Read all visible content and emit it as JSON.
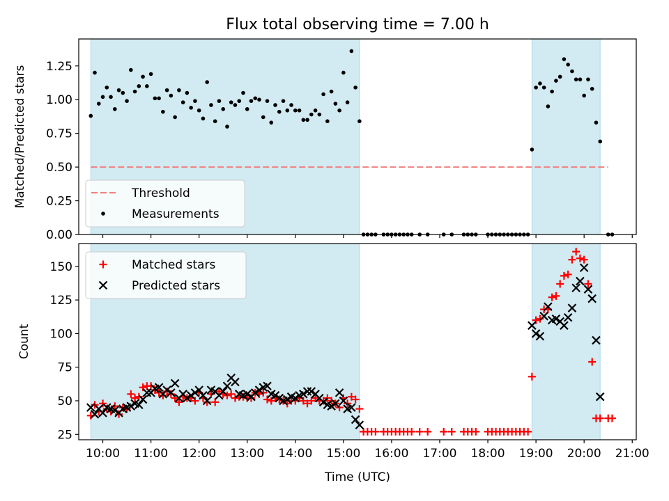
{
  "figure": {
    "title": "Flux total observing time = 7.00 h",
    "xlabel": "Time (UTC)",
    "x_ticks": [
      "10:00",
      "11:00",
      "12:00",
      "13:00",
      "14:00",
      "15:00",
      "16:00",
      "17:00",
      "18:00",
      "19:00",
      "20:00",
      "21:00"
    ]
  },
  "colors": {
    "span": "#add8e6",
    "threshold": "#f08080",
    "matched": "#ff0000",
    "predicted": "#000000",
    "measurements": "#000000"
  },
  "chart_data": [
    {
      "type": "scatter",
      "title": "Flux total observing time = 7.00 h",
      "xlabel": "",
      "ylabel": "Matched/Predicted stars",
      "xlim": [
        "09:30",
        "21:05"
      ],
      "ylim": [
        0,
        1.45
      ],
      "y_ticks": [
        "0.00",
        "0.25",
        "0.50",
        "0.75",
        "1.00",
        "1.25"
      ],
      "legend": {
        "placement": "lower-left",
        "entries": [
          "Threshold",
          "Measurements"
        ]
      },
      "shaded_intervals": [
        [
          "09:45",
          "15:20"
        ],
        [
          "18:55",
          "20:20"
        ]
      ],
      "threshold": {
        "name": "Threshold",
        "y": 0.5,
        "x_start": "09:45",
        "x_end": "20:30"
      },
      "series": [
        {
          "name": "Measurements",
          "marker": "dot",
          "x": [
            "09:45",
            "09:50",
            "09:55",
            "10:00",
            "10:05",
            "10:10",
            "10:15",
            "10:20",
            "10:25",
            "10:30",
            "10:35",
            "10:40",
            "10:45",
            "10:50",
            "10:55",
            "11:00",
            "11:05",
            "11:10",
            "11:15",
            "11:20",
            "11:25",
            "11:30",
            "11:35",
            "11:40",
            "11:45",
            "11:50",
            "11:55",
            "12:00",
            "12:05",
            "12:10",
            "12:15",
            "12:20",
            "12:25",
            "12:30",
            "12:35",
            "12:40",
            "12:45",
            "12:50",
            "12:55",
            "13:00",
            "13:05",
            "13:10",
            "13:15",
            "13:20",
            "13:25",
            "13:30",
            "13:35",
            "13:40",
            "13:45",
            "13:50",
            "13:55",
            "14:00",
            "14:05",
            "14:10",
            "14:15",
            "14:20",
            "14:25",
            "14:30",
            "14:35",
            "14:40",
            "14:45",
            "14:50",
            "14:55",
            "15:00",
            "15:05",
            "15:10",
            "15:15",
            "15:20",
            "15:25",
            "15:30",
            "15:35",
            "15:40",
            "15:50",
            "15:55",
            "16:00",
            "16:05",
            "16:10",
            "16:15",
            "16:20",
            "16:25",
            "16:35",
            "16:45",
            "17:05",
            "17:15",
            "17:30",
            "17:35",
            "17:40",
            "17:45",
            "18:00",
            "18:05",
            "18:10",
            "18:15",
            "18:20",
            "18:25",
            "18:30",
            "18:35",
            "18:40",
            "18:45",
            "18:50",
            "18:55",
            "19:00",
            "19:05",
            "19:10",
            "19:15",
            "19:20",
            "19:25",
            "19:30",
            "19:35",
            "19:40",
            "19:45",
            "19:50",
            "19:55",
            "20:00",
            "20:05",
            "20:10",
            "20:15",
            "20:20",
            "20:30",
            "20:35"
          ],
          "y": [
            0.88,
            1.2,
            0.97,
            1.02,
            1.09,
            1.02,
            0.93,
            1.07,
            1.05,
            0.99,
            1.22,
            1.06,
            1.1,
            1.17,
            1.1,
            1.19,
            1.01,
            1.01,
            0.91,
            1.07,
            1.03,
            0.87,
            1.07,
            0.98,
            1.05,
            0.94,
            0.99,
            0.92,
            0.86,
            1.13,
            0.96,
            0.84,
            0.99,
            0.93,
            0.8,
            0.98,
            0.96,
            0.99,
            1.05,
            0.93,
            0.99,
            1.01,
            1.0,
            0.87,
            0.99,
            0.83,
            0.96,
            0.91,
            0.99,
            0.92,
            0.96,
            0.92,
            0.92,
            0.85,
            0.85,
            0.89,
            0.92,
            0.89,
            1.04,
            0.84,
            1.06,
            0.97,
            0.92,
            1.2,
            0.98,
            1.36,
            1.09,
            0.84,
            0.0,
            0.0,
            0.0,
            0.0,
            0.0,
            0.0,
            0.0,
            0.0,
            0.0,
            0.0,
            0.0,
            0.0,
            0.0,
            0.0,
            0.0,
            0.0,
            0.0,
            0.0,
            0.0,
            0.0,
            0.0,
            0.0,
            0.0,
            0.0,
            0.0,
            0.0,
            0.0,
            0.0,
            0.0,
            0.0,
            0.0,
            0.63,
            1.09,
            1.12,
            1.09,
            0.95,
            1.06,
            1.14,
            1.17,
            1.3,
            1.26,
            1.21,
            1.15,
            1.15,
            1.03,
            1.15,
            1.08,
            0.83,
            0.69,
            0.0,
            0.0
          ]
        }
      ]
    },
    {
      "type": "scatter",
      "title": "",
      "xlabel": "Time (UTC)",
      "ylabel": "Count",
      "xlim": [
        "09:30",
        "21:05"
      ],
      "ylim": [
        21,
        167
      ],
      "y_ticks": [
        "25",
        "50",
        "75",
        "100",
        "125",
        "150"
      ],
      "legend": {
        "placement": "upper-left",
        "entries": [
          "Matched stars",
          "Predicted stars"
        ]
      },
      "shaded_intervals": [
        [
          "09:45",
          "15:20"
        ],
        [
          "18:55",
          "20:20"
        ]
      ],
      "series": [
        {
          "name": "Matched stars",
          "marker": "plus",
          "x": [
            "09:45",
            "09:50",
            "09:55",
            "10:00",
            "10:05",
            "10:10",
            "10:15",
            "10:20",
            "10:25",
            "10:30",
            "10:35",
            "10:40",
            "10:45",
            "10:50",
            "10:55",
            "11:00",
            "11:05",
            "11:10",
            "11:15",
            "11:20",
            "11:25",
            "11:30",
            "11:35",
            "11:40",
            "11:45",
            "11:50",
            "11:55",
            "12:00",
            "12:05",
            "12:10",
            "12:15",
            "12:20",
            "12:25",
            "12:30",
            "12:35",
            "12:40",
            "12:45",
            "12:50",
            "12:55",
            "13:00",
            "13:05",
            "13:10",
            "13:15",
            "13:20",
            "13:25",
            "13:30",
            "13:35",
            "13:40",
            "13:45",
            "13:50",
            "13:55",
            "14:00",
            "14:05",
            "14:10",
            "14:15",
            "14:20",
            "14:25",
            "14:30",
            "14:35",
            "14:40",
            "14:45",
            "14:50",
            "14:55",
            "15:00",
            "15:05",
            "15:10",
            "15:15",
            "15:20",
            "15:25",
            "15:30",
            "15:35",
            "15:40",
            "15:50",
            "15:55",
            "16:00",
            "16:05",
            "16:10",
            "16:15",
            "16:20",
            "16:25",
            "16:35",
            "16:45",
            "17:05",
            "17:15",
            "17:30",
            "17:35",
            "17:40",
            "17:45",
            "18:00",
            "18:05",
            "18:10",
            "18:15",
            "18:20",
            "18:25",
            "18:30",
            "18:35",
            "18:40",
            "18:45",
            "18:50",
            "18:55",
            "19:00",
            "19:05",
            "19:10",
            "19:15",
            "19:20",
            "19:25",
            "19:30",
            "19:35",
            "19:40",
            "19:45",
            "19:50",
            "19:55",
            "20:00",
            "20:05",
            "20:10",
            "20:15",
            "20:20",
            "20:30",
            "20:35"
          ],
          "y": [
            39,
            47,
            42,
            48,
            44,
            42,
            46,
            40,
            45,
            44,
            55,
            52,
            53,
            60,
            61,
            61,
            58,
            56,
            54,
            57,
            55,
            52,
            49,
            53,
            52,
            52,
            50,
            56,
            52,
            49,
            55,
            49,
            57,
            55,
            54,
            55,
            52,
            53,
            53,
            52,
            52,
            56,
            55,
            56,
            51,
            50,
            52,
            51,
            50,
            48,
            50,
            50,
            52,
            50,
            48,
            50,
            52,
            50,
            50,
            52,
            50,
            48,
            45,
            52,
            48,
            53,
            51,
            44,
            27,
            27,
            27,
            27,
            27,
            27,
            27,
            27,
            27,
            27,
            27,
            27,
            27,
            27,
            27,
            27,
            27,
            27,
            27,
            27,
            27,
            27,
            27,
            27,
            27,
            27,
            27,
            27,
            27,
            27,
            27,
            68,
            110,
            111,
            118,
            118,
            127,
            128,
            137,
            143,
            144,
            155,
            161,
            156,
            155,
            137,
            79,
            37,
            37,
            37,
            37
          ]
        },
        {
          "name": "Predicted stars",
          "marker": "x",
          "x": [
            "09:45",
            "09:50",
            "09:55",
            "10:00",
            "10:05",
            "10:10",
            "10:15",
            "10:20",
            "10:25",
            "10:30",
            "10:35",
            "10:40",
            "10:45",
            "10:50",
            "10:55",
            "11:00",
            "11:05",
            "11:10",
            "11:15",
            "11:20",
            "11:25",
            "11:30",
            "11:35",
            "11:40",
            "11:45",
            "11:50",
            "11:55",
            "12:00",
            "12:05",
            "12:10",
            "12:15",
            "12:20",
            "12:25",
            "12:30",
            "12:35",
            "12:40",
            "12:45",
            "12:50",
            "12:55",
            "13:00",
            "13:05",
            "13:10",
            "13:15",
            "13:20",
            "13:25",
            "13:30",
            "13:35",
            "13:40",
            "13:45",
            "13:50",
            "13:55",
            "14:00",
            "14:05",
            "14:10",
            "14:15",
            "14:20",
            "14:25",
            "14:30",
            "14:35",
            "14:40",
            "14:45",
            "14:50",
            "14:55",
            "15:00",
            "15:05",
            "15:10",
            "15:15",
            "15:20",
            "18:55",
            "19:00",
            "19:05",
            "19:10",
            "19:15",
            "19:20",
            "19:25",
            "19:30",
            "19:35",
            "19:40",
            "19:45",
            "19:50",
            "19:55",
            "20:00",
            "20:05",
            "20:10",
            "20:15",
            "20:20"
          ],
          "y": [
            45,
            40,
            44,
            41,
            45,
            44,
            43,
            41,
            44,
            45,
            46,
            48,
            47,
            51,
            56,
            56,
            59,
            60,
            55,
            58,
            56,
            63,
            52,
            55,
            52,
            54,
            56,
            58,
            54,
            50,
            58,
            57,
            54,
            57,
            61,
            67,
            64,
            55,
            54,
            55,
            53,
            56,
            58,
            60,
            61,
            55,
            54,
            52,
            50,
            51,
            53,
            52,
            54,
            55,
            57,
            57,
            55,
            52,
            49,
            47,
            46,
            48,
            56,
            50,
            44,
            45,
            36,
            32,
            106,
            100,
            98,
            113,
            120,
            110,
            111,
            109,
            106,
            112,
            119,
            134,
            139,
            149,
            133,
            126,
            95,
            53
          ]
        }
      ]
    }
  ]
}
